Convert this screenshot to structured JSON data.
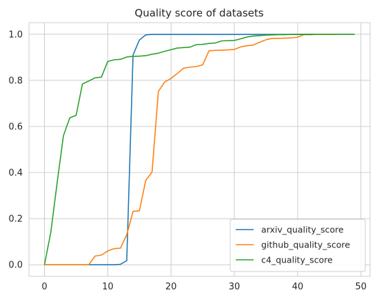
{
  "chart_data": {
    "type": "line",
    "title": "Quality score of datasets",
    "xlabel": "",
    "ylabel": "",
    "xlim": [
      -2.45,
      51.45
    ],
    "ylim": [
      -0.05,
      1.05
    ],
    "xticks": [
      0,
      10,
      20,
      30,
      40,
      50
    ],
    "yticks": [
      0.0,
      0.2,
      0.4,
      0.6,
      0.8,
      1.0
    ],
    "xtick_labels": [
      "0",
      "10",
      "20",
      "30",
      "40",
      "50"
    ],
    "ytick_labels": [
      "0.0",
      "0.2",
      "0.4",
      "0.6",
      "0.8",
      "1.0"
    ],
    "grid": true,
    "legend_position": "lower right",
    "x": [
      0,
      1,
      2,
      3,
      4,
      5,
      6,
      7,
      8,
      9,
      10,
      11,
      12,
      13,
      14,
      15,
      16,
      17,
      18,
      19,
      20,
      21,
      22,
      23,
      24,
      25,
      26,
      27,
      28,
      29,
      30,
      31,
      32,
      33,
      34,
      35,
      36,
      37,
      38,
      39,
      40,
      41,
      42,
      43,
      44,
      45,
      46,
      47,
      48,
      49
    ],
    "series": [
      {
        "name": "arxiv_quality_score",
        "color": "#1f77b4",
        "values": [
          0,
          0,
          0,
          0,
          0,
          0,
          0,
          0,
          0,
          0,
          0,
          0,
          0.002,
          0.018,
          0.91,
          0.975,
          0.997,
          0.999,
          0.999,
          0.999,
          0.999,
          0.999,
          0.999,
          0.999,
          0.999,
          0.999,
          0.999,
          0.999,
          0.999,
          0.999,
          0.999,
          0.999,
          0.999,
          0.999,
          0.999,
          0.999,
          0.999,
          0.999,
          0.999,
          0.999,
          1.0,
          1.0,
          1.0,
          1.0,
          1.0,
          1.0,
          1.0,
          1.0,
          1.0,
          1.0
        ]
      },
      {
        "name": "github_quality_score",
        "color": "#ff7f0e",
        "values": [
          0,
          0,
          0,
          0,
          0,
          0,
          0,
          0,
          0.038,
          0.042,
          0.06,
          0.07,
          0.072,
          0.13,
          0.232,
          0.234,
          0.366,
          0.402,
          0.752,
          0.793,
          0.808,
          0.83,
          0.853,
          0.857,
          0.86,
          0.867,
          0.928,
          0.93,
          0.931,
          0.932,
          0.934,
          0.945,
          0.95,
          0.953,
          0.965,
          0.976,
          0.982,
          0.982,
          0.983,
          0.984,
          0.987,
          0.998,
          0.998,
          0.999,
          0.999,
          0.999,
          0.999,
          1.0,
          1.0,
          1.0
        ]
      },
      {
        "name": "c4_quality_score",
        "color": "#2ca02c",
        "values": [
          0,
          0.14,
          0.355,
          0.56,
          0.637,
          0.648,
          0.784,
          0.797,
          0.811,
          0.814,
          0.882,
          0.889,
          0.891,
          0.901,
          0.904,
          0.905,
          0.907,
          0.913,
          0.918,
          0.926,
          0.933,
          0.94,
          0.942,
          0.944,
          0.955,
          0.956,
          0.96,
          0.962,
          0.971,
          0.972,
          0.973,
          0.98,
          0.988,
          0.992,
          0.994,
          0.996,
          0.997,
          0.998,
          0.998,
          0.999,
          0.999,
          0.999,
          0.999,
          1.0,
          1.0,
          1.0,
          1.0,
          1.0,
          1.0,
          1.0
        ]
      }
    ]
  }
}
